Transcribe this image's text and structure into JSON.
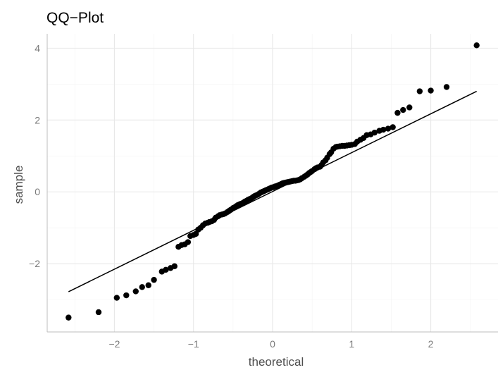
{
  "chart_data": {
    "type": "scatter",
    "title": "QQ−Plot",
    "xlabel": "theoretical",
    "ylabel": "sample",
    "xlim": [
      -2.85,
      2.85
    ],
    "ylim": [
      -3.9,
      4.4
    ],
    "x_ticks": [
      -2,
      -1,
      0,
      1,
      2
    ],
    "x_tick_labels": [
      "−2",
      "−1",
      "0",
      "1",
      "2"
    ],
    "y_ticks": [
      -2,
      0,
      2,
      4
    ],
    "y_tick_labels": [
      "−2",
      "0",
      "2",
      "4"
    ],
    "grid": true,
    "reference_line": {
      "x": [
        -2.58,
        2.58
      ],
      "y": [
        -2.78,
        2.8
      ]
    },
    "points": [
      [
        -2.58,
        -3.5
      ],
      [
        -2.2,
        -3.35
      ],
      [
        -1.97,
        -2.95
      ],
      [
        -1.85,
        -2.88
      ],
      [
        -1.73,
        -2.77
      ],
      [
        -1.65,
        -2.65
      ],
      [
        -1.57,
        -2.6
      ],
      [
        -1.5,
        -2.45
      ],
      [
        -1.4,
        -2.22
      ],
      [
        -1.35,
        -2.17
      ],
      [
        -1.29,
        -2.12
      ],
      [
        -1.24,
        -2.07
      ],
      [
        -1.19,
        -1.53
      ],
      [
        -1.15,
        -1.48
      ],
      [
        -1.11,
        -1.46
      ],
      [
        -1.07,
        -1.4
      ],
      [
        -1.04,
        -1.23
      ],
      [
        -1.0,
        -1.2
      ],
      [
        -0.97,
        -1.17
      ],
      [
        -0.94,
        -1.05
      ],
      [
        -0.91,
        -1.0
      ],
      [
        -0.88,
        -0.93
      ],
      [
        -0.85,
        -0.88
      ],
      [
        -0.82,
        -0.86
      ],
      [
        -0.8,
        -0.84
      ],
      [
        -0.77,
        -0.82
      ],
      [
        -0.74,
        -0.78
      ],
      [
        -0.72,
        -0.72
      ],
      [
        -0.69,
        -0.68
      ],
      [
        -0.67,
        -0.65
      ],
      [
        -0.64,
        -0.63
      ],
      [
        -0.62,
        -0.62
      ],
      [
        -0.6,
        -0.6
      ],
      [
        -0.57,
        -0.56
      ],
      [
        -0.55,
        -0.53
      ],
      [
        -0.53,
        -0.5
      ],
      [
        -0.5,
        -0.45
      ],
      [
        -0.48,
        -0.43
      ],
      [
        -0.46,
        -0.4
      ],
      [
        -0.44,
        -0.37
      ],
      [
        -0.42,
        -0.35
      ],
      [
        -0.4,
        -0.33
      ],
      [
        -0.37,
        -0.3
      ],
      [
        -0.35,
        -0.27
      ],
      [
        -0.33,
        -0.25
      ],
      [
        -0.31,
        -0.22
      ],
      [
        -0.29,
        -0.2
      ],
      [
        -0.27,
        -0.18
      ],
      [
        -0.25,
        -0.15
      ],
      [
        -0.23,
        -0.12
      ],
      [
        -0.21,
        -0.1
      ],
      [
        -0.19,
        -0.08
      ],
      [
        -0.17,
        -0.05
      ],
      [
        -0.15,
        -0.02
      ],
      [
        -0.13,
        -0.0
      ],
      [
        -0.11,
        0.02
      ],
      [
        -0.09,
        0.04
      ],
      [
        -0.07,
        0.06
      ],
      [
        -0.05,
        0.08
      ],
      [
        -0.03,
        0.1
      ],
      [
        -0.01,
        0.12
      ],
      [
        0.01,
        0.13
      ],
      [
        0.03,
        0.15
      ],
      [
        0.05,
        0.16
      ],
      [
        0.07,
        0.18
      ],
      [
        0.09,
        0.2
      ],
      [
        0.11,
        0.22
      ],
      [
        0.13,
        0.24
      ],
      [
        0.15,
        0.25
      ],
      [
        0.17,
        0.26
      ],
      [
        0.19,
        0.27
      ],
      [
        0.21,
        0.28
      ],
      [
        0.23,
        0.29
      ],
      [
        0.25,
        0.3
      ],
      [
        0.27,
        0.31
      ],
      [
        0.29,
        0.31
      ],
      [
        0.31,
        0.32
      ],
      [
        0.33,
        0.33
      ],
      [
        0.35,
        0.35
      ],
      [
        0.37,
        0.38
      ],
      [
        0.4,
        0.42
      ],
      [
        0.42,
        0.45
      ],
      [
        0.44,
        0.48
      ],
      [
        0.46,
        0.52
      ],
      [
        0.48,
        0.55
      ],
      [
        0.5,
        0.58
      ],
      [
        0.53,
        0.63
      ],
      [
        0.55,
        0.66
      ],
      [
        0.57,
        0.68
      ],
      [
        0.6,
        0.7
      ],
      [
        0.62,
        0.75
      ],
      [
        0.64,
        0.82
      ],
      [
        0.67,
        0.88
      ],
      [
        0.69,
        0.95
      ],
      [
        0.72,
        1.05
      ],
      [
        0.74,
        1.1
      ],
      [
        0.77,
        1.2
      ],
      [
        0.8,
        1.25
      ],
      [
        0.82,
        1.26
      ],
      [
        0.85,
        1.27
      ],
      [
        0.88,
        1.28
      ],
      [
        0.91,
        1.28
      ],
      [
        0.94,
        1.29
      ],
      [
        0.97,
        1.3
      ],
      [
        1.0,
        1.31
      ],
      [
        1.04,
        1.33
      ],
      [
        1.07,
        1.4
      ],
      [
        1.11,
        1.45
      ],
      [
        1.15,
        1.5
      ],
      [
        1.19,
        1.58
      ],
      [
        1.24,
        1.6
      ],
      [
        1.29,
        1.65
      ],
      [
        1.35,
        1.7
      ],
      [
        1.4,
        1.73
      ],
      [
        1.46,
        1.76
      ],
      [
        1.52,
        1.8
      ],
      [
        1.58,
        2.2
      ],
      [
        1.65,
        2.28
      ],
      [
        1.73,
        2.35
      ],
      [
        1.86,
        2.8
      ],
      [
        2.0,
        2.82
      ],
      [
        2.2,
        2.92
      ],
      [
        2.58,
        4.08
      ]
    ]
  }
}
